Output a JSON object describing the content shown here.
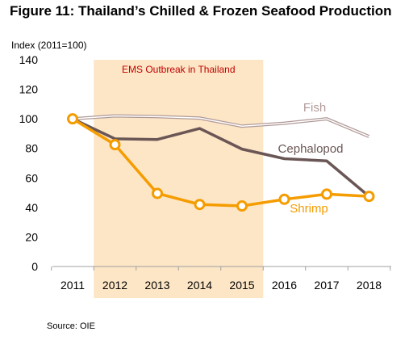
{
  "title": "Figure 11: Thailand’s Chilled & Frozen Seafood Production",
  "source": "Source: OIE",
  "chart_data": {
    "type": "line",
    "ylabel": "Index (2011=100)",
    "xlabel": "",
    "ylim": [
      0,
      140
    ],
    "yticks": [
      0,
      20,
      40,
      60,
      80,
      100,
      120,
      140
    ],
    "x": [
      "2011",
      "2012",
      "2013",
      "2014",
      "2015",
      "2016",
      "2017",
      "2018"
    ],
    "grid": false,
    "annotation": {
      "label": "EMS Outbreak in Thailand",
      "x_start": "2012",
      "x_end": "2015",
      "color": "#fde6c6",
      "text_color": "#c00000"
    },
    "series": [
      {
        "name": "Fish",
        "color": "#b09a98",
        "values": [
          100,
          102,
          101.5,
          100.5,
          95,
          97,
          100,
          88
        ],
        "style": "double"
      },
      {
        "name": "Cephalopod",
        "color": "#6b5656",
        "values": [
          100,
          86.5,
          86,
          93.5,
          79.5,
          73,
          71.5,
          47.5
        ],
        "style": "solid"
      },
      {
        "name": "Shrimp",
        "color": "#f59c00",
        "values": [
          100,
          82.5,
          49.5,
          42,
          41,
          45.5,
          49,
          47.5
        ],
        "style": "markers"
      }
    ]
  }
}
